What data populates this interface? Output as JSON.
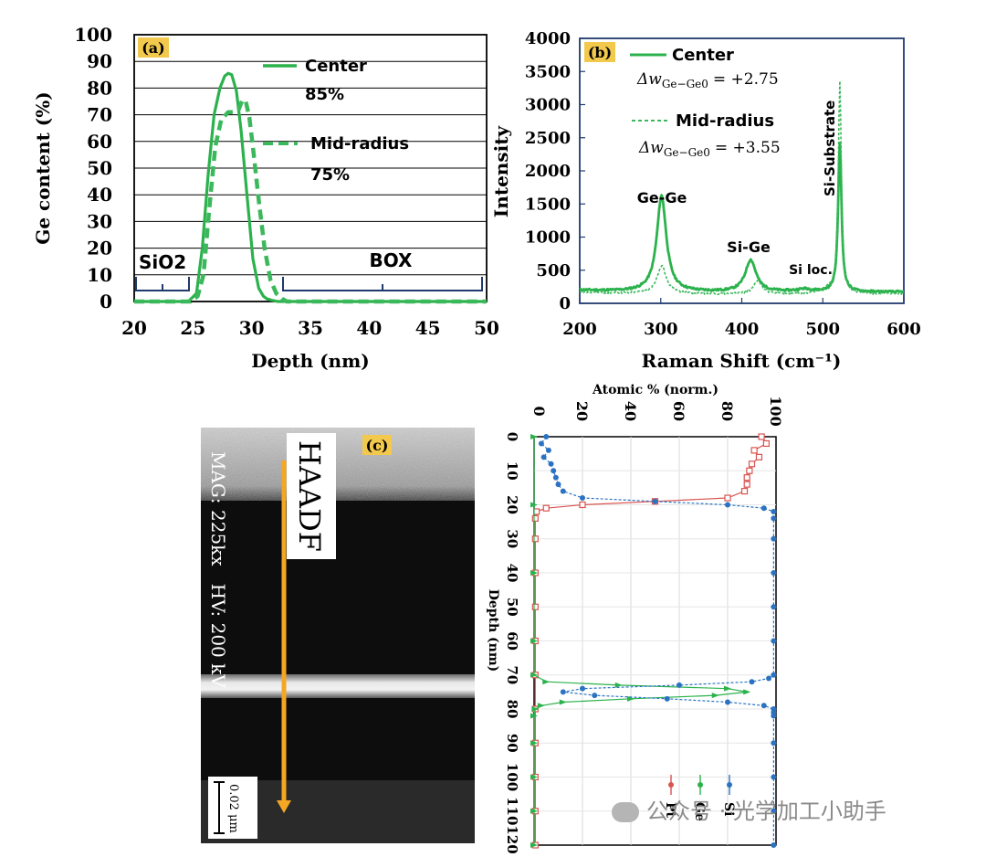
{
  "chart_data": [
    {
      "panel": "(a)",
      "type": "line",
      "xlabel": "Depth (nm)",
      "ylabel": "Ge content (%)",
      "xlim": [
        20,
        50
      ],
      "ylim": [
        0,
        100
      ],
      "xticks": [
        20,
        25,
        30,
        35,
        40,
        45,
        50
      ],
      "yticks": [
        0,
        10,
        20,
        30,
        40,
        50,
        60,
        70,
        80,
        90,
        100
      ],
      "grid": "horizontal",
      "series": [
        {
          "name": "Center",
          "style": "solid",
          "peak_label": "85%",
          "x": [
            20,
            24.6,
            25.3,
            25.8,
            26.3,
            26.8,
            27.3,
            27.7,
            28.0,
            28.3,
            28.7,
            29.1,
            29.6,
            30.1,
            30.6,
            31.0,
            31.3,
            31.7,
            32.2,
            50
          ],
          "y": [
            0,
            0,
            3,
            20,
            48,
            70,
            80,
            84.5,
            85.5,
            85,
            79,
            64,
            40,
            16,
            5,
            2,
            1,
            0.5,
            0,
            0
          ]
        },
        {
          "name": "Mid-radius",
          "style": "dashed",
          "peak_label": "75%",
          "x": [
            20,
            24.8,
            25.4,
            25.9,
            26.4,
            26.9,
            27.4,
            28.0,
            28.5,
            28.9,
            29.2,
            29.5,
            29.8,
            30.1,
            30.6,
            31.1,
            31.6,
            32.1,
            32.6,
            33.0,
            50
          ],
          "y": [
            0,
            0,
            2,
            10,
            35,
            58,
            68,
            71,
            71,
            72,
            75.5,
            75,
            69,
            58,
            38,
            20,
            8,
            3,
            1,
            0,
            0
          ]
        }
      ],
      "annotations": [
        "SiO2",
        "BOX"
      ],
      "legend": [
        {
          "name": "Center",
          "value": "85%"
        },
        {
          "name": "Mid-radius",
          "value": "75%"
        }
      ]
    },
    {
      "panel": "(b)",
      "type": "line",
      "xlabel": "Raman Shift (cm⁻¹)",
      "ylabel": "Intensity",
      "xlim": [
        200,
        600
      ],
      "ylim": [
        0,
        4000
      ],
      "xticks": [
        200,
        300,
        400,
        500,
        600
      ],
      "yticks": [
        0,
        500,
        1000,
        1500,
        2000,
        2500,
        3000,
        3500,
        4000
      ],
      "series": [
        {
          "name": "Center",
          "style": "solid",
          "delta_w": "+2.75",
          "peaks": [
            {
              "center": 301,
              "height": 1450,
              "width": 7
            },
            {
              "center": 411,
              "height": 480,
              "width": 8
            },
            {
              "center": 478,
              "height": 40,
              "width": 12
            },
            {
              "center": 521,
              "height": 2250,
              "width": 2.5
            }
          ],
          "baseline": 170
        },
        {
          "name": "Mid-radius",
          "style": "dashed",
          "delta_w": "+3.55",
          "peaks": [
            {
              "center": 301,
              "height": 420,
              "width": 7
            },
            {
              "center": 420,
              "height": 200,
              "width": 6
            },
            {
              "center": 505,
              "height": 70,
              "width": 10
            },
            {
              "center": 521,
              "height": 3200,
              "width": 2.2
            }
          ],
          "baseline": 140
        }
      ],
      "annotations": [
        "Ge-Ge",
        "Si-Ge",
        "Si loc.",
        "Si-Substrate"
      ],
      "legend": [
        {
          "name": "Center",
          "delta_label": "Δw",
          "subscript": "Ge−Ge0",
          "value": "= +2.75"
        },
        {
          "name": "Mid-radius",
          "delta_label": "Δw",
          "subscript": "Ge−Ge0",
          "value": "= +3.55"
        }
      ]
    },
    {
      "panel": "(c)",
      "type": "line",
      "orientation": "rotated",
      "xlabel": "Depth (nm)",
      "ylabel": "Atomic % (norm.)",
      "xlim": [
        0,
        120
      ],
      "ylim": [
        0,
        100
      ],
      "xticks": [
        0,
        10,
        20,
        30,
        40,
        50,
        60,
        70,
        80,
        90,
        100,
        110,
        120
      ],
      "yticks": [
        0,
        20,
        40,
        60,
        80,
        100
      ],
      "series": [
        {
          "name": "Pt",
          "color": "#d9534f",
          "marker": "square",
          "x": [
            0,
            2,
            4,
            6,
            8,
            10,
            12,
            14,
            16,
            18,
            19,
            20,
            21,
            22,
            24,
            30,
            40,
            50,
            60,
            70,
            80,
            90,
            100,
            110,
            120
          ],
          "y": [
            94,
            96,
            91,
            93,
            90,
            89,
            88,
            88,
            87,
            80,
            50,
            20,
            5,
            1,
            0.5,
            0.5,
            0.5,
            0.5,
            0.5,
            0.5,
            0.5,
            0.5,
            0.5,
            0.5,
            0.5
          ]
        },
        {
          "name": "Ge",
          "color": "#2bb24c",
          "marker": "triangle",
          "x": [
            0,
            20,
            40,
            60,
            70,
            72,
            73,
            74,
            75,
            76,
            77,
            78,
            79,
            80,
            82,
            90,
            100,
            110,
            120
          ],
          "y": [
            0,
            0,
            0,
            0,
            0,
            5,
            35,
            80,
            88,
            75,
            40,
            12,
            3,
            0.5,
            0,
            0,
            0,
            0,
            0
          ]
        },
        {
          "name": "Si",
          "color": "#2b73c2",
          "marker": "circle",
          "x": [
            0,
            2,
            4,
            6,
            8,
            10,
            12,
            14,
            16,
            18,
            19,
            20,
            21,
            22,
            24,
            30,
            40,
            50,
            60,
            70,
            71,
            72,
            73,
            74,
            75,
            76,
            77,
            78,
            79,
            80,
            81,
            82,
            90,
            100,
            110,
            120
          ],
          "y": [
            5,
            3,
            6,
            4,
            7,
            8,
            9,
            10,
            12,
            20,
            50,
            80,
            95,
            99,
            99,
            99,
            99,
            99,
            99,
            99,
            97,
            90,
            60,
            20,
            12,
            25,
            55,
            80,
            95,
            99,
            99,
            99,
            99,
            99,
            99,
            99
          ]
        }
      ],
      "legend": [
        "Pt",
        "Ge",
        "Si"
      ]
    }
  ],
  "tem_image": {
    "panel": "(c)",
    "mode_label": "HAADF",
    "info": "MAG: 225kx   HV: 200 kV",
    "scale_bar": "0.02 μm"
  },
  "watermark": "公众号 · 光学加工小助手",
  "colors": {
    "green_line": "#2bb24c",
    "green_dash": "#3cb85c",
    "bracket": "#1f3a6e",
    "axis": "#000000",
    "panel_label_bg": "#f2c94c",
    "arrow": "#f5a623"
  }
}
